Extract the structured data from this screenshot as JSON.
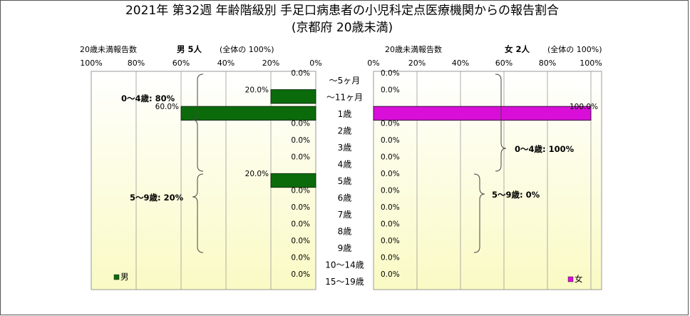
{
  "title": {
    "line1": "2021年 第32週 年齢階級別 手足口病患者の小児科定点医療機関からの報告割合",
    "line2": "(京都府 20歳未満)"
  },
  "panels": {
    "male": {
      "header_left": "20歳未満報告数",
      "header_count": "男 5人",
      "header_share": "(全体の 100%)",
      "legend": "男",
      "groups": [
        {
          "label": "0～4歳: 80%"
        },
        {
          "label": "5～9歳: 20%"
        }
      ]
    },
    "female": {
      "header_left": "20歳未満報告数",
      "header_count": "女 2人",
      "header_share": "(全体の 100%)",
      "legend": "女",
      "groups": [
        {
          "label": "0～4歳: 100%"
        },
        {
          "label": "5～9歳: 0%"
        }
      ]
    }
  },
  "colors": {
    "male": "#0b6b0b",
    "female": "#d90fd9",
    "plot_top": "#ffffff",
    "plot_bottom": "#fafac4",
    "frame": "#555555"
  },
  "chart_data": {
    "type": "bar",
    "orientation": "horizontal",
    "layout": "population-pyramid",
    "categories": [
      "～5ヶ月",
      "～11ヶ月",
      "1歳",
      "2歳",
      "3歳",
      "4歳",
      "5歳",
      "6歳",
      "7歳",
      "8歳",
      "9歳",
      "10～14歳",
      "15～19歳"
    ],
    "xlim": [
      0,
      100
    ],
    "x_ticks": [
      "0%",
      "20%",
      "40%",
      "60%",
      "80%",
      "100%"
    ],
    "grid": true,
    "series": [
      {
        "name": "男",
        "values": [
          0.0,
          20.0,
          60.0,
          0.0,
          0.0,
          0.0,
          20.0,
          0.0,
          0.0,
          0.0,
          0.0,
          0.0,
          0.0
        ],
        "labels": [
          "0.0%",
          "20.0%",
          "60.0%",
          "0.0%",
          "0.0%",
          "0.0%",
          "20.0%",
          "0.0%",
          "0.0%",
          "0.0%",
          "0.0%",
          "0.0%",
          "0.0%"
        ]
      },
      {
        "name": "女",
        "values": [
          0.0,
          0.0,
          100.0,
          0.0,
          0.0,
          0.0,
          0.0,
          0.0,
          0.0,
          0.0,
          0.0,
          0.0,
          0.0
        ],
        "labels": [
          "0.0%",
          "0.0%",
          "100.0%",
          "0.0%",
          "0.0%",
          "0.0%",
          "0.0%",
          "0.0%",
          "0.0%",
          "0.0%",
          "0.0%",
          "0.0%",
          "0.0%"
        ]
      }
    ]
  }
}
